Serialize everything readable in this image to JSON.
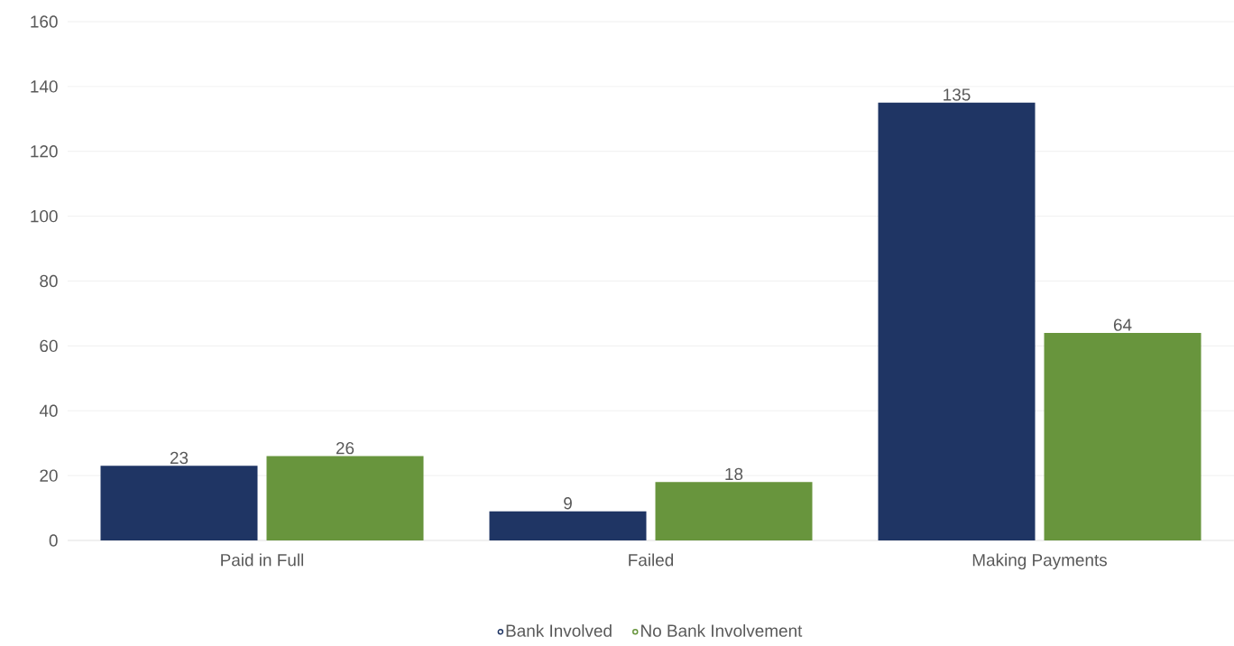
{
  "chart_data": {
    "type": "bar",
    "categories": [
      "Paid in Full",
      "Failed",
      "Making Payments"
    ],
    "series": [
      {
        "name": "Bank Involved",
        "color": "#1f3564",
        "values": [
          23,
          9,
          135
        ]
      },
      {
        "name": "No Bank Involvement",
        "color": "#68953d",
        "values": [
          26,
          18,
          64
        ]
      }
    ],
    "ylim": [
      0,
      160
    ],
    "yticks": [
      0,
      20,
      40,
      60,
      80,
      100,
      120,
      140,
      160
    ],
    "grid": "y",
    "legend": "bottom",
    "data_labels": true
  }
}
